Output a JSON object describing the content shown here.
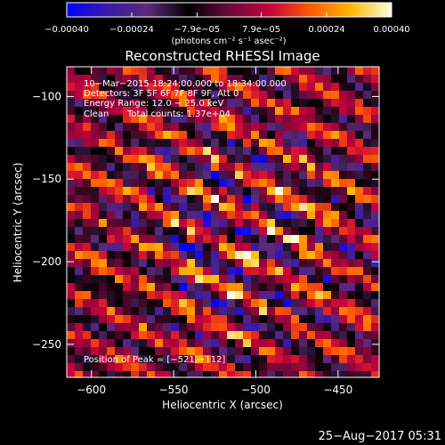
{
  "chart_data": {
    "type": "heatmap",
    "title": "Reconstructed RHESSI Image",
    "xlabel": "Heliocentric X (arcsec)",
    "ylabel": "Heliocentric Y (arcsec)",
    "xlim": [
      -615,
      -425
    ],
    "ylim": [
      -270,
      -82
    ],
    "x_ticks": [
      -600,
      -550,
      -500,
      -450
    ],
    "y_ticks": [
      -100,
      -150,
      -200,
      -250
    ],
    "x_tick_labels": [
      "−600",
      "−550",
      "−500",
      "−450"
    ],
    "y_tick_labels": [
      "−100",
      "−150",
      "−200",
      "−250"
    ],
    "colorbar": {
      "min": -0.0004,
      "max": 0.0004,
      "ticks": [
        -0.0004,
        -0.00024,
        -7.9e-05,
        7.9e-05,
        0.00024,
        0.0004
      ],
      "tick_labels": [
        "−0.00040",
        "−0.00024",
        "−7.9e−05",
        "7.9e−05",
        "0.00024",
        "0.00040"
      ],
      "unit_label": "(photons cm⁻² s⁻¹ asec⁻²)",
      "colors": [
        "#0000ff",
        "#3a1aa8",
        "#5a2a7a",
        "#000000",
        "#6a0a3a",
        "#c8003c",
        "#ff5a00",
        "#ffb800",
        "#ffffe0"
      ]
    },
    "peak": {
      "x": -521,
      "y": -112
    },
    "annotations": [
      "10−Mar−2015 18:24:00.000 to 18:34:00.000",
      "Detectors: 3F 5F 6F 7F 8F 9F, Att 0",
      "Energy Range: 12.0 − 25.0 keV",
      "Clean",
      "Total counts: 1.37e+04",
      "Position of Peak = [−521,−112]"
    ],
    "grid": false
  },
  "footer": {
    "timestamp": "25−Aug−2017 05:31"
  }
}
